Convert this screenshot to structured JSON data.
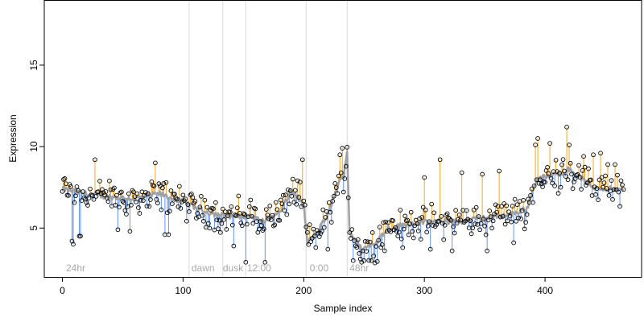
{
  "chart_data": {
    "type": "scatter",
    "title": "",
    "xlabel": "Sample index",
    "ylabel": "Expression",
    "xlim": [
      -15,
      480
    ],
    "ylim": [
      2.0,
      19.0
    ],
    "x_ticks": [
      0,
      100,
      200,
      300,
      400
    ],
    "y_ticks": [
      5,
      10,
      15
    ],
    "grid": false,
    "legend": "none",
    "colors": {
      "above_fit": "#f5a623",
      "below_fit": "#6495ed",
      "fit_line": "#a0a0a0",
      "points_edge": "#000000",
      "phase_lines": "#d9d9d9",
      "phase_text": "#a8a8a8"
    },
    "phase_boundaries": [
      105,
      133,
      152,
      202,
      236
    ],
    "phase_labels": [
      {
        "x": 3,
        "label": "24hr"
      },
      {
        "x": 107,
        "label": "dawn"
      },
      {
        "x": 133,
        "label": "dusk"
      },
      {
        "x": 153,
        "label": "12:00"
      },
      {
        "x": 205,
        "label": "0:00"
      },
      {
        "x": 238,
        "label": "48hr"
      }
    ],
    "fit_anchors": [
      [
        0,
        7.4
      ],
      [
        20,
        7.1
      ],
      [
        40,
        6.9
      ],
      [
        60,
        6.8
      ],
      [
        80,
        7.1
      ],
      [
        100,
        6.6
      ],
      [
        115,
        6.1
      ],
      [
        130,
        5.8
      ],
      [
        145,
        5.7
      ],
      [
        155,
        5.8
      ],
      [
        165,
        5.4
      ],
      [
        180,
        5.9
      ],
      [
        190,
        7.3
      ],
      [
        200,
        6.4
      ],
      [
        203,
        4.1
      ],
      [
        210,
        4.6
      ],
      [
        220,
        5.8
      ],
      [
        228,
        7.6
      ],
      [
        233,
        8.2
      ],
      [
        236,
        9.8
      ],
      [
        238,
        4.8
      ],
      [
        248,
        3.7
      ],
      [
        258,
        4.0
      ],
      [
        270,
        5.0
      ],
      [
        290,
        5.3
      ],
      [
        310,
        5.4
      ],
      [
        330,
        5.4
      ],
      [
        350,
        5.6
      ],
      [
        370,
        5.8
      ],
      [
        385,
        6.2
      ],
      [
        393,
        8.0
      ],
      [
        410,
        8.3
      ],
      [
        420,
        8.6
      ],
      [
        440,
        7.5
      ],
      [
        466,
        7.3
      ]
    ],
    "outliers": [
      [
        8,
        4.2
      ],
      [
        9,
        4.0
      ],
      [
        14,
        4.5
      ],
      [
        15,
        4.5
      ],
      [
        27,
        9.2
      ],
      [
        46,
        4.9
      ],
      [
        56,
        4.8
      ],
      [
        77,
        9.0
      ],
      [
        85,
        4.6
      ],
      [
        88,
        4.6
      ],
      [
        142,
        3.9
      ],
      [
        152,
        2.9
      ],
      [
        168,
        2.9
      ],
      [
        199,
        9.2
      ],
      [
        220,
        3.7
      ],
      [
        230,
        9.5
      ],
      [
        232,
        9.9
      ],
      [
        241,
        3.0
      ],
      [
        248,
        2.9
      ],
      [
        250,
        3.0
      ],
      [
        256,
        3.0
      ],
      [
        282,
        3.8
      ],
      [
        300,
        8.1
      ],
      [
        305,
        3.7
      ],
      [
        313,
        9.2
      ],
      [
        323,
        3.6
      ],
      [
        331,
        8.4
      ],
      [
        348,
        8.3
      ],
      [
        352,
        3.6
      ],
      [
        362,
        8.5
      ],
      [
        374,
        4.1
      ],
      [
        392,
        10.1
      ],
      [
        394,
        10.5
      ],
      [
        404,
        10.2
      ],
      [
        418,
        11.2
      ],
      [
        420,
        10.1
      ],
      [
        432,
        9.4
      ],
      [
        440,
        9.5
      ],
      [
        446,
        9.6
      ],
      [
        452,
        8.9
      ],
      [
        458,
        8.9
      ]
    ]
  }
}
